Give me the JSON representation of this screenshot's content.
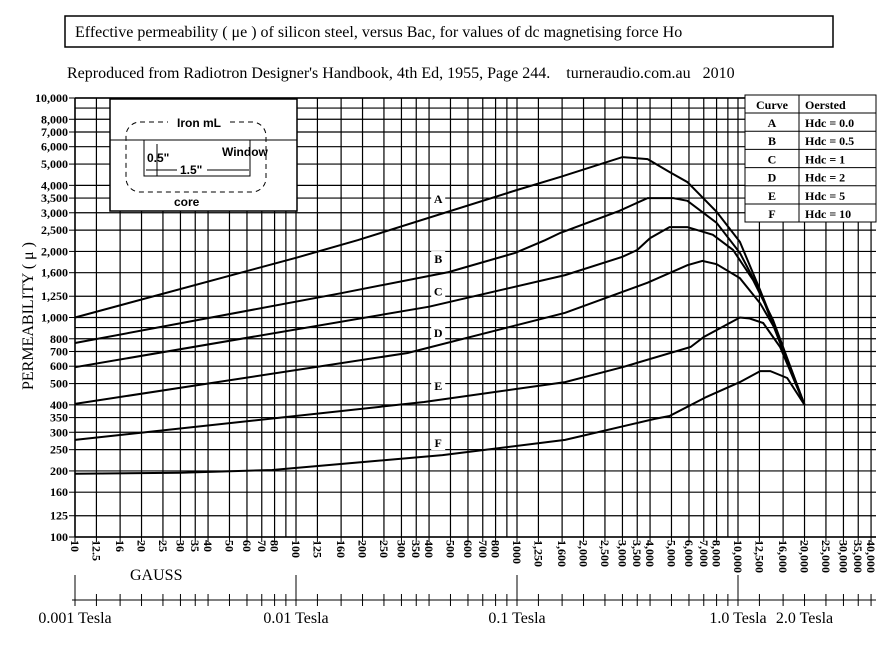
{
  "chart_data": {
    "type": "line",
    "title": "Effective permeability ( μe ) of silicon steel, versus Bac, for values of dc magnetising force Ho",
    "subtitle": "Reproduced from Radiotron Designer's Handbook, 4th Ed, 1955, Page 244.    turneraudio.com.au   2010",
    "xlabel": "GAUSS",
    "ylabel": "PERMEABILITY ( μ )",
    "x_scale": "log",
    "y_scale": "log",
    "xlim": [
      10,
      40000
    ],
    "ylim": [
      100,
      10000
    ],
    "grid": true,
    "x_ticks": [
      10,
      12.5,
      16,
      20,
      25,
      30,
      35,
      40,
      50,
      60,
      70,
      80,
      100,
      125,
      160,
      200,
      250,
      300,
      350,
      400,
      500,
      600,
      700,
      800,
      1000,
      1250,
      1600,
      2000,
      2500,
      3000,
      3500,
      4000,
      5000,
      6000,
      7000,
      8000,
      10000,
      12500,
      16000,
      20000,
      25000,
      30000,
      35000,
      40000
    ],
    "x_tick_labels": [
      "10",
      "12.5",
      "16",
      "20",
      "25",
      "30",
      "35",
      "40",
      "50",
      "60",
      "70",
      "80",
      "100",
      "125",
      "160",
      "200",
      "250",
      "300",
      "350",
      "400",
      "500",
      "600",
      "700",
      "800",
      "1000",
      "1,250",
      "1,600",
      "2,000",
      "2,500",
      "3,000",
      "3,500",
      "4,000",
      "5,000",
      "6,000",
      "7,000",
      "8,000",
      "10,000",
      "12,500",
      "16,000",
      "20,000",
      "25,000",
      "30,000",
      "35,000",
      "40,000"
    ],
    "x_extra_gridlines": [
      90,
      900,
      9000
    ],
    "y_ticks": [
      10000,
      8000,
      7000,
      6000,
      5000,
      4000,
      3500,
      3000,
      2500,
      2000,
      1600,
      1250,
      1000,
      800,
      700,
      600,
      500,
      400,
      350,
      300,
      250,
      200,
      160,
      125,
      100
    ],
    "y_tick_labels": [
      "10,000",
      "8,000",
      "7,000",
      "6,000",
      "5,000",
      "4,000",
      "3,500",
      "3,000",
      "2,500",
      "2,000",
      "1,600",
      "1,250",
      "1,000",
      "800",
      "700",
      "600",
      "500",
      "400",
      "350",
      "300",
      "250",
      "200",
      "160",
      "125",
      "100"
    ],
    "y_extra_gridlines": [
      9000,
      900
    ],
    "secondary_x_axis": {
      "ticks": [
        10,
        12.5,
        16,
        20,
        25,
        30,
        35,
        40,
        50,
        60,
        70,
        80,
        90,
        100,
        125,
        160,
        200,
        250,
        300,
        350,
        400,
        500,
        600,
        700,
        800,
        900,
        1000,
        1250,
        1600,
        2000,
        2500,
        3000,
        3500,
        4000,
        5000,
        6000,
        7000,
        8000,
        9000,
        10000,
        12500,
        16000,
        20000,
        25000,
        30000,
        35000,
        40000
      ],
      "labels": [
        {
          "text": "0.001  Tesla",
          "x": 10
        },
        {
          "text": "0.01 Tesla",
          "x": 100
        },
        {
          "text": "0.1 Tesla",
          "x": 1000
        },
        {
          "text": "1.0 Tesla",
          "x": 10000
        },
        {
          "text": "2.0 Tesla",
          "x": 20000
        }
      ]
    },
    "series": [
      {
        "name": "A",
        "label_at": [
          440,
          3330
        ],
        "points": [
          [
            10,
            1000
          ],
          [
            100,
            1870
          ],
          [
            190,
            2250
          ],
          [
            1000,
            3810
          ],
          [
            1570,
            4370
          ],
          [
            3000,
            5380
          ],
          [
            3900,
            5270
          ],
          [
            4900,
            4600
          ],
          [
            5900,
            4140
          ],
          [
            8000,
            3030
          ],
          [
            10200,
            2210
          ],
          [
            12600,
            1330
          ],
          [
            15500,
            790
          ],
          [
            20000,
            400
          ]
        ]
      },
      {
        "name": "B",
        "label_at": [
          440,
          1770
        ],
        "points": [
          [
            10,
            765
          ],
          [
            160,
            1290
          ],
          [
            490,
            1610
          ],
          [
            980,
            1970
          ],
          [
            1340,
            2250
          ],
          [
            1570,
            2430
          ],
          [
            2900,
            3060
          ],
          [
            3900,
            3500
          ],
          [
            5100,
            3500
          ],
          [
            5900,
            3400
          ],
          [
            8000,
            2700
          ],
          [
            10200,
            1970
          ],
          [
            12600,
            1310
          ],
          [
            15500,
            765
          ],
          [
            20000,
            400
          ]
        ]
      },
      {
        "name": "C",
        "label_at": [
          440,
          1260
        ],
        "points": [
          [
            10,
            594
          ],
          [
            400,
            1120
          ],
          [
            1650,
            1560
          ],
          [
            3000,
            1890
          ],
          [
            3500,
            2030
          ],
          [
            4000,
            2300
          ],
          [
            4900,
            2580
          ],
          [
            5900,
            2580
          ],
          [
            7700,
            2380
          ],
          [
            9500,
            2030
          ],
          [
            11700,
            1480
          ],
          [
            14400,
            975
          ],
          [
            20000,
            400
          ]
        ]
      },
      {
        "name": "D",
        "label_at": [
          440,
          815
        ],
        "points": [
          [
            10,
            404
          ],
          [
            320,
            689
          ],
          [
            1650,
            1050
          ],
          [
            3900,
            1440
          ],
          [
            5900,
            1730
          ],
          [
            6900,
            1810
          ],
          [
            8000,
            1750
          ],
          [
            10200,
            1510
          ],
          [
            12600,
            1160
          ],
          [
            15000,
            859
          ],
          [
            20000,
            400
          ]
        ]
      },
      {
        "name": "E",
        "label_at": [
          440,
          468
        ],
        "points": [
          [
            10,
            277
          ],
          [
            380,
            412
          ],
          [
            1650,
            508
          ],
          [
            3000,
            594
          ],
          [
            6100,
            734
          ],
          [
            7000,
            815
          ],
          [
            10200,
            1000
          ],
          [
            11300,
            990
          ],
          [
            13000,
            944
          ],
          [
            15500,
            734
          ],
          [
            20000,
            400
          ]
        ]
      },
      {
        "name": "F",
        "label_at": [
          440,
          257
        ],
        "points": [
          [
            10,
            194
          ],
          [
            30,
            196
          ],
          [
            78,
            202
          ],
          [
            460,
            236
          ],
          [
            1650,
            277
          ],
          [
            4200,
            345
          ],
          [
            4900,
            356
          ],
          [
            7200,
            435
          ],
          [
            10200,
            508
          ],
          [
            12600,
            570
          ],
          [
            14000,
            570
          ],
          [
            16700,
            530
          ],
          [
            20000,
            400
          ]
        ]
      }
    ],
    "legend": {
      "placement": "top-right",
      "headers": [
        "Curve",
        "Oersted"
      ],
      "rows": [
        [
          "A",
          "Hdc = 0.0"
        ],
        [
          "B",
          "Hdc = 0.5"
        ],
        [
          "C",
          "Hdc = 1"
        ],
        [
          "D",
          "Hdc = 2"
        ],
        [
          "E",
          "Hdc = 5"
        ],
        [
          "F",
          "Hdc = 10"
        ]
      ]
    },
    "inset": {
      "iron_label": "Iron mL",
      "window_label": "Window",
      "height_label": "0.5\"",
      "width_label": "1.5\"",
      "core_label": "core"
    }
  }
}
